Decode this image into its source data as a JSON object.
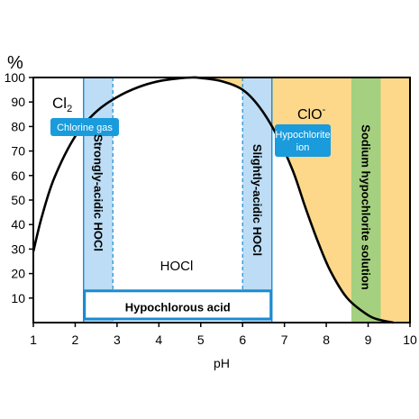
{
  "chart_data": {
    "type": "area",
    "ylabel_unit": "%",
    "xlabel": "pH",
    "xlim": [
      1,
      10
    ],
    "ylim": [
      0,
      100
    ],
    "x_ticks": [
      "1",
      "2",
      "3",
      "4",
      "5",
      "6",
      "7",
      "8",
      "9",
      "10"
    ],
    "y_ticks": [
      "10",
      "20",
      "30",
      "40",
      "50",
      "60",
      "70",
      "80",
      "90",
      "100"
    ],
    "hocl_curve": {
      "name": "HOCl",
      "points": [
        [
          1.0,
          29
        ],
        [
          1.2,
          43
        ],
        [
          1.5,
          59
        ],
        [
          2.0,
          76
        ],
        [
          2.5,
          86
        ],
        [
          3.0,
          92
        ],
        [
          3.5,
          96
        ],
        [
          4.0,
          98.5
        ],
        [
          4.5,
          99.7
        ],
        [
          4.8,
          100
        ],
        [
          5.0,
          99.8
        ],
        [
          5.5,
          98.5
        ],
        [
          6.0,
          95
        ],
        [
          6.4,
          88
        ],
        [
          6.8,
          77
        ],
        [
          7.2,
          62
        ],
        [
          7.5,
          47
        ],
        [
          7.8,
          33
        ],
        [
          8.1,
          21
        ],
        [
          8.5,
          10
        ],
        [
          9.0,
          3
        ],
        [
          9.3,
          1
        ],
        [
          9.6,
          0
        ]
      ]
    },
    "clo_region": {
      "name": "ClO-",
      "from_ph": 4.8,
      "color": "#FDD88B"
    },
    "bands": [
      {
        "id": "strongly-acidic",
        "label": "Strongly-acidic HOCl",
        "x": [
          2.2,
          2.9
        ],
        "color": "#BCDDF5"
      },
      {
        "id": "slightly-acidic",
        "label": "Slightly-acidic HOCl",
        "x": [
          6.0,
          6.7
        ],
        "color": "#BCDDF5"
      },
      {
        "id": "sodium-hypochlorite",
        "label": "Sodium hypochlorite solution",
        "x": [
          8.6,
          9.3
        ],
        "color": "#A4D07F"
      }
    ],
    "region_labels": {
      "cl2": "Cl",
      "cl2_sub": "2",
      "hocl": "HOCl",
      "clo": "ClO",
      "clo_sup": "-"
    },
    "badges": {
      "chlorine_gas": "Chlorine gas",
      "hypochlorite_line1": "Hypochlorite",
      "hypochlorite_line2": "ion"
    },
    "hypochlorous_box": {
      "label": "Hypochlorous acid",
      "x": [
        2.2,
        6.7
      ],
      "y": [
        0,
        10
      ]
    },
    "colors": {
      "accent_badge": "#1A9BDC",
      "border": "#1A8BD0",
      "curve": "#000000"
    }
  }
}
